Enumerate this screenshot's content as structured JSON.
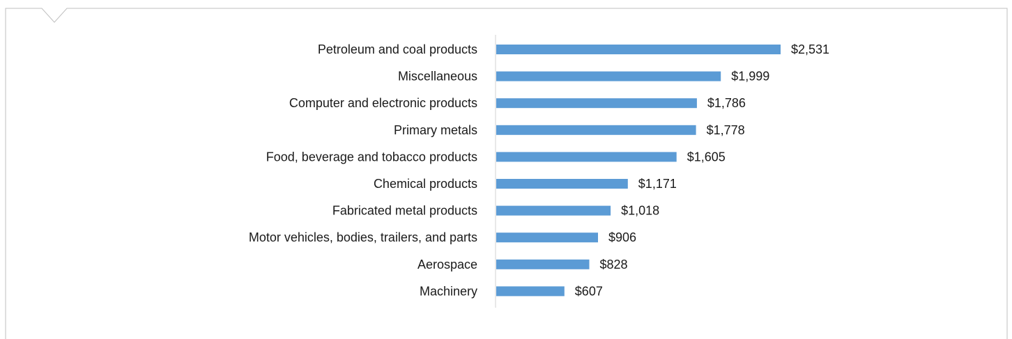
{
  "colors": {
    "bar": "#5b9bd5",
    "axis": "#d0d0d0",
    "frame": "#bfbfbf",
    "text": "#1a1a1a"
  },
  "chart_data": {
    "type": "bar",
    "orientation": "horizontal",
    "title": "",
    "xlabel": "",
    "ylabel": "",
    "grid": false,
    "legend": "none",
    "xlim": [
      0,
      2531
    ],
    "value_prefix": "$",
    "categories": [
      "Petroleum and coal products",
      "Miscellaneous",
      "Computer and electronic products",
      "Primary metals",
      "Food, beverage and tobacco products",
      "Chemical products",
      "Fabricated metal products",
      "Motor vehicles, bodies, trailers, and parts",
      "Aerospace",
      "Machinery"
    ],
    "values": [
      2531,
      1999,
      1786,
      1778,
      1605,
      1171,
      1018,
      906,
      828,
      607
    ],
    "value_labels": [
      "$2,531",
      "$1,999",
      "$1,786",
      "$1,778",
      "$1,605",
      "$1,171",
      "$1,018",
      "$906",
      "$828",
      "$607"
    ]
  }
}
